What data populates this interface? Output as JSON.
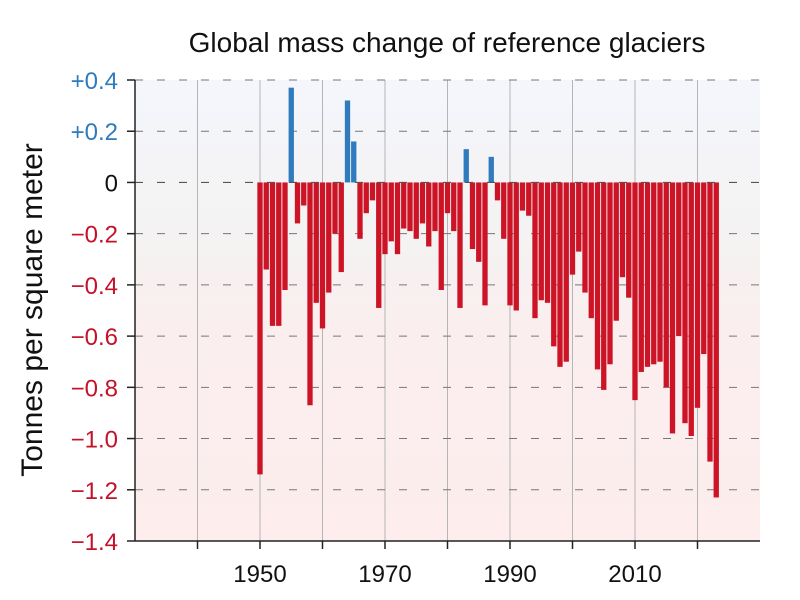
{
  "chart_data": {
    "type": "bar",
    "title": "Global mass change of reference glaciers",
    "ylabel": "Tonnes per square meter",
    "xlabel": "",
    "xlim": [
      1930,
      2030
    ],
    "ylim": [
      -1.4,
      0.4
    ],
    "grid": true,
    "legend": "none",
    "x_ticks": [
      {
        "value": 1950,
        "label": "1950"
      },
      {
        "value": 1970,
        "label": "1970"
      },
      {
        "value": 1990,
        "label": "1990"
      },
      {
        "value": 2010,
        "label": "2010"
      }
    ],
    "y_ticks": [
      {
        "value": 0.4,
        "label": "+0.4"
      },
      {
        "value": 0.2,
        "label": "+0.2"
      },
      {
        "value": 0,
        "label": "0"
      },
      {
        "value": -0.2,
        "label": "−0.2"
      },
      {
        "value": -0.4,
        "label": "−0.4"
      },
      {
        "value": -0.6,
        "label": "−0.6"
      },
      {
        "value": -0.8,
        "label": "−0.8"
      },
      {
        "value": -1.0,
        "label": "−1.0"
      },
      {
        "value": -1.2,
        "label": "−1.2"
      },
      {
        "value": -1.4,
        "label": "−1.4"
      }
    ],
    "colors": {
      "positive": "#2f7bbd",
      "negative": "#cc1426",
      "tick_positive": "#2f7bbd",
      "tick_zero": "#111111",
      "tick_negative": "#c4122a",
      "band_positive": "#f3f5fb",
      "band_negative": "#fdeeee"
    },
    "categories": [
      1950,
      1951,
      1952,
      1953,
      1954,
      1955,
      1956,
      1957,
      1958,
      1959,
      1960,
      1961,
      1962,
      1963,
      1964,
      1965,
      1966,
      1967,
      1968,
      1969,
      1970,
      1971,
      1972,
      1973,
      1974,
      1975,
      1976,
      1977,
      1978,
      1979,
      1980,
      1981,
      1982,
      1983,
      1984,
      1985,
      1986,
      1987,
      1988,
      1989,
      1990,
      1991,
      1992,
      1993,
      1994,
      1995,
      1996,
      1997,
      1998,
      1999,
      2000,
      2001,
      2002,
      2003,
      2004,
      2005,
      2006,
      2007,
      2008,
      2009,
      2010,
      2011,
      2012,
      2013,
      2014,
      2015,
      2016,
      2017,
      2018,
      2019,
      2020,
      2021,
      2022,
      2023
    ],
    "values": [
      -1.14,
      -0.34,
      -0.56,
      -0.56,
      -0.42,
      0.37,
      -0.16,
      -0.09,
      -0.87,
      -0.47,
      -0.57,
      -0.43,
      -0.2,
      -0.35,
      0.32,
      0.16,
      -0.22,
      -0.12,
      -0.07,
      -0.49,
      -0.28,
      -0.23,
      -0.28,
      -0.18,
      -0.19,
      -0.22,
      -0.16,
      -0.25,
      -0.19,
      -0.42,
      -0.12,
      -0.19,
      -0.49,
      0.13,
      -0.26,
      -0.31,
      -0.48,
      0.1,
      -0.07,
      -0.22,
      -0.48,
      -0.5,
      -0.11,
      -0.13,
      -0.53,
      -0.46,
      -0.47,
      -0.64,
      -0.72,
      -0.7,
      -0.36,
      -0.27,
      -0.43,
      -0.53,
      -0.73,
      -0.81,
      -0.71,
      -0.54,
      -0.37,
      -0.45,
      -0.85,
      -0.74,
      -0.72,
      -0.71,
      -0.7,
      -0.8,
      -0.98,
      -0.6,
      -0.94,
      -0.99,
      -0.88,
      -0.67,
      -1.09,
      -1.23
    ]
  }
}
